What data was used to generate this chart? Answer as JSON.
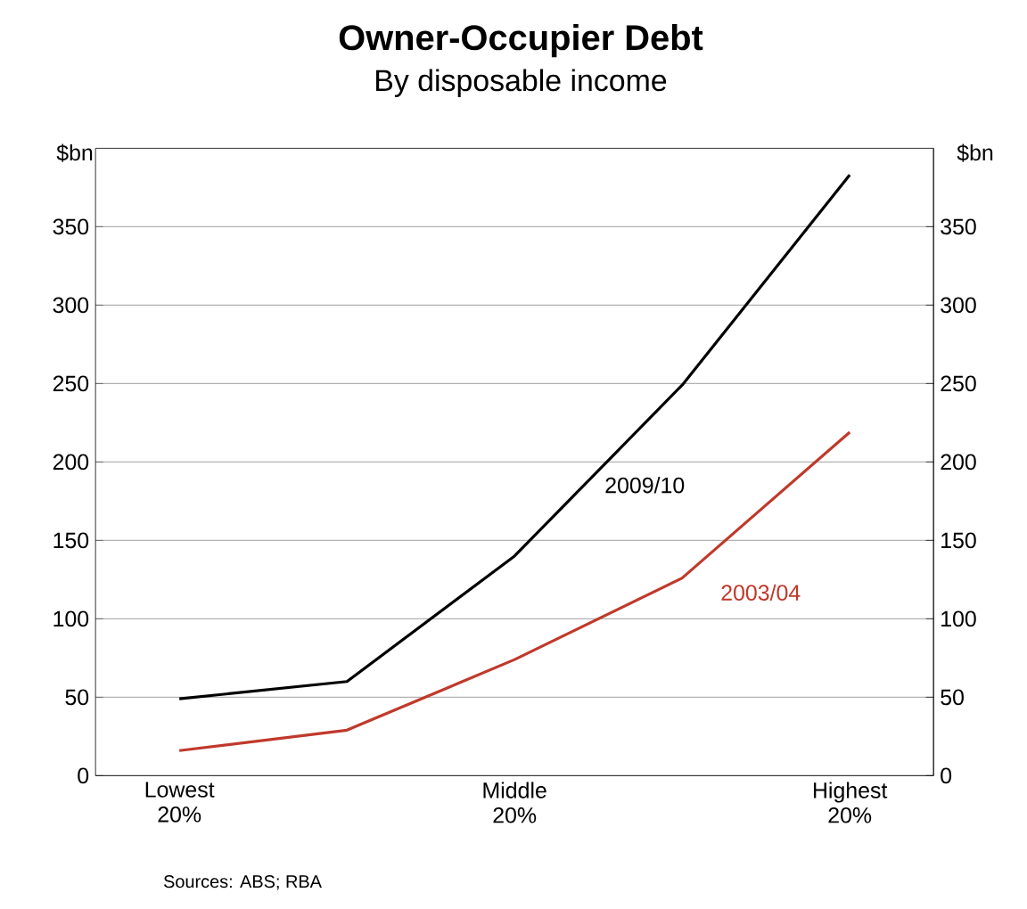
{
  "chart_data": {
    "type": "line",
    "title": "Owner-Occupier Debt",
    "subtitle": "By disposable income",
    "ylabel": "$bn",
    "y2label": "$bn",
    "categories": [
      "Lowest 20%",
      null,
      "Middle 20%",
      null,
      "Highest 20%"
    ],
    "series": [
      {
        "name": "2009/10",
        "color": "#000000",
        "values": [
          49,
          60,
          140,
          249,
          383
        ]
      },
      {
        "name": "2003/04",
        "color": "#c0392b",
        "values": [
          16,
          29,
          74,
          126,
          219
        ]
      }
    ],
    "ylim": [
      0,
      400
    ],
    "yticks": [
      0,
      50,
      100,
      150,
      200,
      250,
      300,
      350
    ],
    "y2lim": [
      0,
      400
    ],
    "y2ticks": [
      0,
      50,
      100,
      150,
      200,
      250,
      300,
      350
    ],
    "grid": "y",
    "marker": "none",
    "line_style": "solid",
    "annotations": [
      "Sources: ABS; RBA"
    ]
  }
}
